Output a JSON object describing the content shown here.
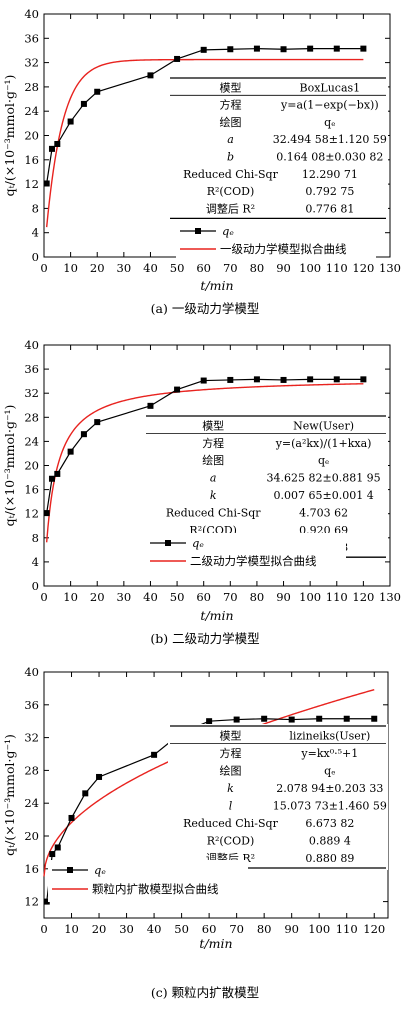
{
  "chart_data": [
    {
      "type": "line",
      "caption": "(a)  一级动力学模型",
      "xlabel": "t/min",
      "ylabel": "qₜ/(×10⁻³mmol·g⁻¹)",
      "xlim": [
        0,
        130
      ],
      "ylim": [
        0,
        40
      ],
      "xticks": [
        0,
        10,
        20,
        30,
        40,
        50,
        60,
        70,
        80,
        90,
        100,
        110,
        120,
        130
      ],
      "yticks": [
        0,
        4,
        8,
        12,
        16,
        20,
        24,
        28,
        32,
        36,
        40
      ],
      "grid": false,
      "legend_position": "bottom-right",
      "series": [
        {
          "name": "qₑ",
          "kind": "marker-line",
          "color": "#000000",
          "x": [
            1,
            3,
            5,
            10,
            15,
            20,
            40,
            50,
            60,
            70,
            80,
            90,
            100,
            110,
            120
          ],
          "y": [
            12.1,
            17.8,
            18.6,
            22.3,
            25.2,
            27.2,
            29.9,
            32.6,
            34.1,
            34.2,
            34.3,
            34.2,
            34.3,
            34.3,
            34.3
          ]
        },
        {
          "name": "一级动力学模型拟合曲线",
          "kind": "fit",
          "color": "#e8231f",
          "model": "first-order",
          "params": {
            "a": 32.49458,
            "b": 0.16408
          }
        }
      ],
      "table": {
        "header": [
          "模型",
          "BoxLucas1"
        ],
        "rows": [
          [
            "方程",
            "y=a(1−exp(−bx))"
          ],
          [
            "绘图",
            "qₑ"
          ],
          [
            "a",
            "32.494 58±1.120 59"
          ],
          [
            "b",
            "0.164 08±0.030 82"
          ],
          [
            "Reduced Chi-Sqr",
            "12.290 71"
          ],
          [
            "R²(COD)",
            "0.792 75"
          ],
          [
            "调整后 R²",
            "0.776 81"
          ]
        ]
      }
    },
    {
      "type": "line",
      "caption": "(b)  二级动力学模型",
      "xlabel": "t/min",
      "ylabel": "qₜ/(×10⁻³mmol·g⁻¹)",
      "xlim": [
        0,
        130
      ],
      "ylim": [
        0,
        40
      ],
      "xticks": [
        0,
        10,
        20,
        30,
        40,
        50,
        60,
        70,
        80,
        90,
        100,
        110,
        120,
        130
      ],
      "yticks": [
        0,
        4,
        8,
        12,
        16,
        20,
        24,
        28,
        32,
        36,
        40
      ],
      "grid": false,
      "legend_position": "bottom-right",
      "series": [
        {
          "name": "qₑ",
          "kind": "marker-line",
          "color": "#000000",
          "x": [
            1,
            3,
            5,
            10,
            15,
            20,
            40,
            50,
            60,
            70,
            80,
            90,
            100,
            110,
            120
          ],
          "y": [
            12.1,
            17.8,
            18.6,
            22.3,
            25.2,
            27.2,
            29.9,
            32.6,
            34.1,
            34.2,
            34.3,
            34.2,
            34.3,
            34.3,
            34.3
          ]
        },
        {
          "name": "二级动力学模型拟合曲线",
          "kind": "fit",
          "color": "#e8231f",
          "model": "second-order",
          "params": {
            "a": 34.62582,
            "k": 0.00765
          }
        }
      ],
      "table": {
        "header": [
          "模型",
          "New(User)"
        ],
        "rows": [
          [
            "方程",
            "y=(a²kx)/(1+kxa)"
          ],
          [
            "绘图",
            "qₑ"
          ],
          [
            "a",
            "34.625 82±0.881 95"
          ],
          [
            "k",
            "0.007 65±0.001 4"
          ],
          [
            "Reduced Chi-Sqr",
            "4.703 62"
          ],
          [
            "R²(COD)",
            "0.920 69"
          ],
          [
            "调整后 R²",
            "0.914 58"
          ]
        ]
      }
    },
    {
      "type": "line",
      "caption": "(c)  颗粒内扩散模型",
      "xlabel": "t/min",
      "ylabel": "qₜ/(×10⁻³mmol·g⁻¹)",
      "xlim": [
        0,
        125
      ],
      "ylim": [
        10,
        40
      ],
      "xticks": [
        0,
        10,
        20,
        30,
        40,
        50,
        60,
        70,
        80,
        90,
        100,
        110,
        120
      ],
      "yticks": [
        12,
        16,
        20,
        24,
        28,
        32,
        36,
        40
      ],
      "grid": false,
      "legend_position": "bottom-left",
      "series": [
        {
          "name": "qₑ",
          "kind": "marker-line",
          "color": "#000000",
          "x": [
            1,
            3,
            5,
            10,
            15,
            20,
            40,
            50,
            60,
            70,
            80,
            90,
            100,
            110,
            120
          ],
          "y": [
            12.0,
            17.8,
            18.6,
            22.2,
            25.2,
            27.2,
            29.9,
            32.6,
            34.0,
            34.2,
            34.3,
            34.2,
            34.3,
            34.3,
            34.3
          ]
        },
        {
          "name": "颗粒内扩散模型拟合曲线",
          "kind": "fit",
          "color": "#e8231f",
          "model": "intraparticle",
          "params": {
            "k": 2.07894,
            "l": 15.07373
          }
        }
      ],
      "table": {
        "header": [
          "模型",
          "lizineiks(User)"
        ],
        "rows": [
          [
            "方程",
            "y=kx⁰·⁵+1"
          ],
          [
            "绘图",
            "qₑ"
          ],
          [
            "k",
            "2.078 94±0.203 33"
          ],
          [
            "l",
            "15.073 73±1.460 59"
          ],
          [
            "Reduced Chi-Sqr",
            "6.673 82"
          ],
          [
            "R²(COD)",
            "0.889 4"
          ],
          [
            "调整后 R²",
            "0.880 89"
          ]
        ]
      }
    }
  ]
}
